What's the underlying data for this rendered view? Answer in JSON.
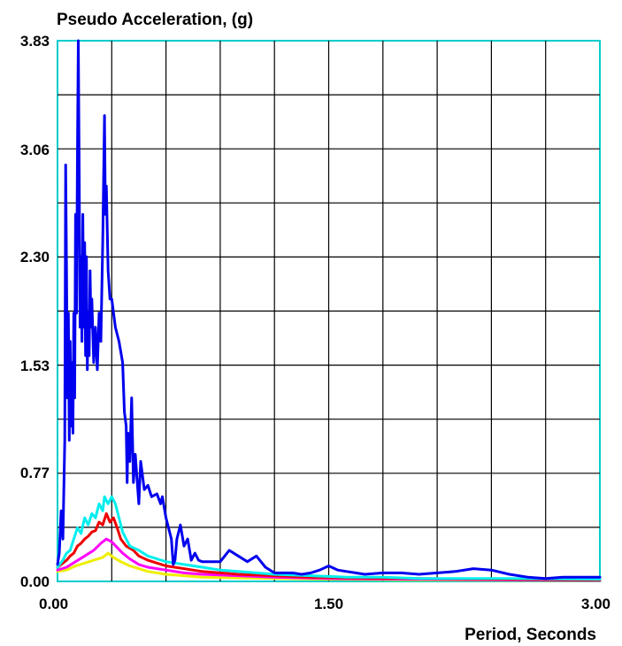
{
  "chart_data": {
    "type": "line",
    "title": "",
    "ylabel": "Pseudo Acceleration, (g)",
    "xlabel": "Period, Seconds",
    "xlim": [
      0,
      3.0
    ],
    "ylim": [
      0,
      3.83
    ],
    "x_ticks": [
      "0.00",
      "1.50",
      "3.00"
    ],
    "y_ticks": [
      "0.00",
      "0.77",
      "1.53",
      "2.30",
      "3.06",
      "3.83"
    ],
    "x_tick_values": [
      0,
      1.5,
      3.0
    ],
    "y_tick_values": [
      0,
      0.77,
      1.53,
      2.3,
      3.06,
      3.83
    ],
    "grid": true,
    "legend": "none",
    "series": [
      {
        "color": "#0000ee",
        "points": [
          [
            0.0,
            0.12
          ],
          [
            0.01,
            0.2
          ],
          [
            0.02,
            0.5
          ],
          [
            0.03,
            0.3
          ],
          [
            0.04,
            1.0
          ],
          [
            0.045,
            2.95
          ],
          [
            0.05,
            2.2
          ],
          [
            0.055,
            1.3
          ],
          [
            0.06,
            1.9
          ],
          [
            0.065,
            1.0
          ],
          [
            0.07,
            1.7
          ],
          [
            0.075,
            1.1
          ],
          [
            0.08,
            1.55
          ],
          [
            0.085,
            1.05
          ],
          [
            0.09,
            1.9
          ],
          [
            0.095,
            1.3
          ],
          [
            0.1,
            2.6
          ],
          [
            0.105,
            1.9
          ],
          [
            0.11,
            3.0
          ],
          [
            0.115,
            3.83
          ],
          [
            0.12,
            2.9
          ],
          [
            0.125,
            1.8
          ],
          [
            0.13,
            2.3
          ],
          [
            0.135,
            1.7
          ],
          [
            0.14,
            2.6
          ],
          [
            0.145,
            1.8
          ],
          [
            0.15,
            2.4
          ],
          [
            0.155,
            1.6
          ],
          [
            0.16,
            2.3
          ],
          [
            0.165,
            1.5
          ],
          [
            0.17,
            1.9
          ],
          [
            0.175,
            1.6
          ],
          [
            0.18,
            2.2
          ],
          [
            0.185,
            1.8
          ],
          [
            0.19,
            2.0
          ],
          [
            0.2,
            1.55
          ],
          [
            0.21,
            1.8
          ],
          [
            0.22,
            1.5
          ],
          [
            0.23,
            1.9
          ],
          [
            0.24,
            1.7
          ],
          [
            0.25,
            2.4
          ],
          [
            0.26,
            3.3
          ],
          [
            0.265,
            2.6
          ],
          [
            0.27,
            2.8
          ],
          [
            0.28,
            2.2
          ],
          [
            0.29,
            2.0
          ],
          [
            0.3,
            2.0
          ],
          [
            0.32,
            1.8
          ],
          [
            0.34,
            1.7
          ],
          [
            0.36,
            1.55
          ],
          [
            0.37,
            1.2
          ],
          [
            0.38,
            1.1
          ],
          [
            0.385,
            0.7
          ],
          [
            0.39,
            1.05
          ],
          [
            0.4,
            0.85
          ],
          [
            0.41,
            1.3
          ],
          [
            0.42,
            0.7
          ],
          [
            0.43,
            0.9
          ],
          [
            0.45,
            0.55
          ],
          [
            0.46,
            0.85
          ],
          [
            0.48,
            0.65
          ],
          [
            0.5,
            0.68
          ],
          [
            0.52,
            0.6
          ],
          [
            0.55,
            0.62
          ],
          [
            0.57,
            0.55
          ],
          [
            0.58,
            0.6
          ],
          [
            0.6,
            0.45
          ],
          [
            0.62,
            0.35
          ],
          [
            0.63,
            0.3
          ],
          [
            0.64,
            0.12
          ],
          [
            0.65,
            0.15
          ],
          [
            0.66,
            0.3
          ],
          [
            0.68,
            0.4
          ],
          [
            0.7,
            0.25
          ],
          [
            0.72,
            0.3
          ],
          [
            0.74,
            0.15
          ],
          [
            0.76,
            0.2
          ],
          [
            0.78,
            0.15
          ],
          [
            0.8,
            0.14
          ],
          [
            0.85,
            0.14
          ],
          [
            0.9,
            0.14
          ],
          [
            0.95,
            0.22
          ],
          [
            1.0,
            0.18
          ],
          [
            1.05,
            0.14
          ],
          [
            1.1,
            0.18
          ],
          [
            1.15,
            0.1
          ],
          [
            1.2,
            0.06
          ],
          [
            1.3,
            0.06
          ],
          [
            1.35,
            0.05
          ],
          [
            1.4,
            0.06
          ],
          [
            1.45,
            0.08
          ],
          [
            1.5,
            0.11
          ],
          [
            1.55,
            0.08
          ],
          [
            1.6,
            0.07
          ],
          [
            1.65,
            0.06
          ],
          [
            1.7,
            0.05
          ],
          [
            1.8,
            0.06
          ],
          [
            1.9,
            0.06
          ],
          [
            2.0,
            0.05
          ],
          [
            2.1,
            0.06
          ],
          [
            2.2,
            0.07
          ],
          [
            2.3,
            0.09
          ],
          [
            2.4,
            0.08
          ],
          [
            2.5,
            0.05
          ],
          [
            2.6,
            0.03
          ],
          [
            2.7,
            0.02
          ],
          [
            2.8,
            0.03
          ],
          [
            2.9,
            0.03
          ],
          [
            3.0,
            0.03
          ]
        ]
      },
      {
        "color": "#00eeee",
        "points": [
          [
            0.0,
            0.1
          ],
          [
            0.03,
            0.15
          ],
          [
            0.05,
            0.2
          ],
          [
            0.07,
            0.22
          ],
          [
            0.09,
            0.3
          ],
          [
            0.11,
            0.38
          ],
          [
            0.13,
            0.34
          ],
          [
            0.15,
            0.45
          ],
          [
            0.17,
            0.4
          ],
          [
            0.19,
            0.48
          ],
          [
            0.21,
            0.45
          ],
          [
            0.23,
            0.55
          ],
          [
            0.25,
            0.5
          ],
          [
            0.26,
            0.6
          ],
          [
            0.28,
            0.55
          ],
          [
            0.3,
            0.6
          ],
          [
            0.32,
            0.55
          ],
          [
            0.34,
            0.45
          ],
          [
            0.36,
            0.35
          ],
          [
            0.4,
            0.25
          ],
          [
            0.45,
            0.22
          ],
          [
            0.5,
            0.18
          ],
          [
            0.55,
            0.16
          ],
          [
            0.6,
            0.14
          ],
          [
            0.7,
            0.12
          ],
          [
            0.8,
            0.1
          ],
          [
            0.9,
            0.08
          ],
          [
            1.0,
            0.07
          ],
          [
            1.2,
            0.05
          ],
          [
            1.4,
            0.04
          ],
          [
            1.6,
            0.03
          ],
          [
            1.8,
            0.03
          ],
          [
            2.0,
            0.02
          ],
          [
            2.5,
            0.02
          ],
          [
            3.0,
            0.015
          ]
        ]
      },
      {
        "color": "#ee0000",
        "points": [
          [
            0.0,
            0.1
          ],
          [
            0.03,
            0.13
          ],
          [
            0.05,
            0.15
          ],
          [
            0.07,
            0.18
          ],
          [
            0.09,
            0.2
          ],
          [
            0.11,
            0.25
          ],
          [
            0.13,
            0.27
          ],
          [
            0.15,
            0.3
          ],
          [
            0.17,
            0.32
          ],
          [
            0.19,
            0.35
          ],
          [
            0.21,
            0.36
          ],
          [
            0.23,
            0.42
          ],
          [
            0.25,
            0.4
          ],
          [
            0.27,
            0.48
          ],
          [
            0.29,
            0.42
          ],
          [
            0.31,
            0.45
          ],
          [
            0.33,
            0.38
          ],
          [
            0.35,
            0.3
          ],
          [
            0.38,
            0.25
          ],
          [
            0.42,
            0.22
          ],
          [
            0.45,
            0.18
          ],
          [
            0.5,
            0.15
          ],
          [
            0.55,
            0.13
          ],
          [
            0.6,
            0.11
          ],
          [
            0.7,
            0.09
          ],
          [
            0.8,
            0.07
          ],
          [
            0.9,
            0.06
          ],
          [
            1.0,
            0.05
          ],
          [
            1.2,
            0.04
          ],
          [
            1.4,
            0.03
          ],
          [
            1.6,
            0.025
          ],
          [
            2.0,
            0.02
          ],
          [
            2.5,
            0.015
          ],
          [
            3.0,
            0.01
          ]
        ]
      },
      {
        "color": "#ff00ff",
        "points": [
          [
            0.0,
            0.08
          ],
          [
            0.05,
            0.1
          ],
          [
            0.1,
            0.14
          ],
          [
            0.15,
            0.18
          ],
          [
            0.2,
            0.22
          ],
          [
            0.24,
            0.27
          ],
          [
            0.27,
            0.3
          ],
          [
            0.3,
            0.28
          ],
          [
            0.33,
            0.24
          ],
          [
            0.36,
            0.2
          ],
          [
            0.4,
            0.16
          ],
          [
            0.45,
            0.12
          ],
          [
            0.5,
            0.1
          ],
          [
            0.6,
            0.08
          ],
          [
            0.7,
            0.06
          ],
          [
            0.8,
            0.05
          ],
          [
            1.0,
            0.04
          ],
          [
            1.2,
            0.03
          ],
          [
            1.5,
            0.02
          ],
          [
            2.0,
            0.015
          ],
          [
            2.5,
            0.01
          ],
          [
            3.0,
            0.008
          ]
        ]
      },
      {
        "color": "#eeee00",
        "points": [
          [
            0.0,
            0.07
          ],
          [
            0.05,
            0.08
          ],
          [
            0.1,
            0.11
          ],
          [
            0.15,
            0.13
          ],
          [
            0.2,
            0.15
          ],
          [
            0.25,
            0.17
          ],
          [
            0.28,
            0.2
          ],
          [
            0.31,
            0.17
          ],
          [
            0.35,
            0.14
          ],
          [
            0.4,
            0.11
          ],
          [
            0.45,
            0.09
          ],
          [
            0.5,
            0.07
          ],
          [
            0.6,
            0.05
          ],
          [
            0.7,
            0.04
          ],
          [
            0.8,
            0.03
          ],
          [
            1.0,
            0.025
          ],
          [
            1.5,
            0.015
          ],
          [
            2.0,
            0.01
          ],
          [
            2.5,
            0.008
          ],
          [
            3.0,
            0.006
          ]
        ]
      }
    ]
  }
}
